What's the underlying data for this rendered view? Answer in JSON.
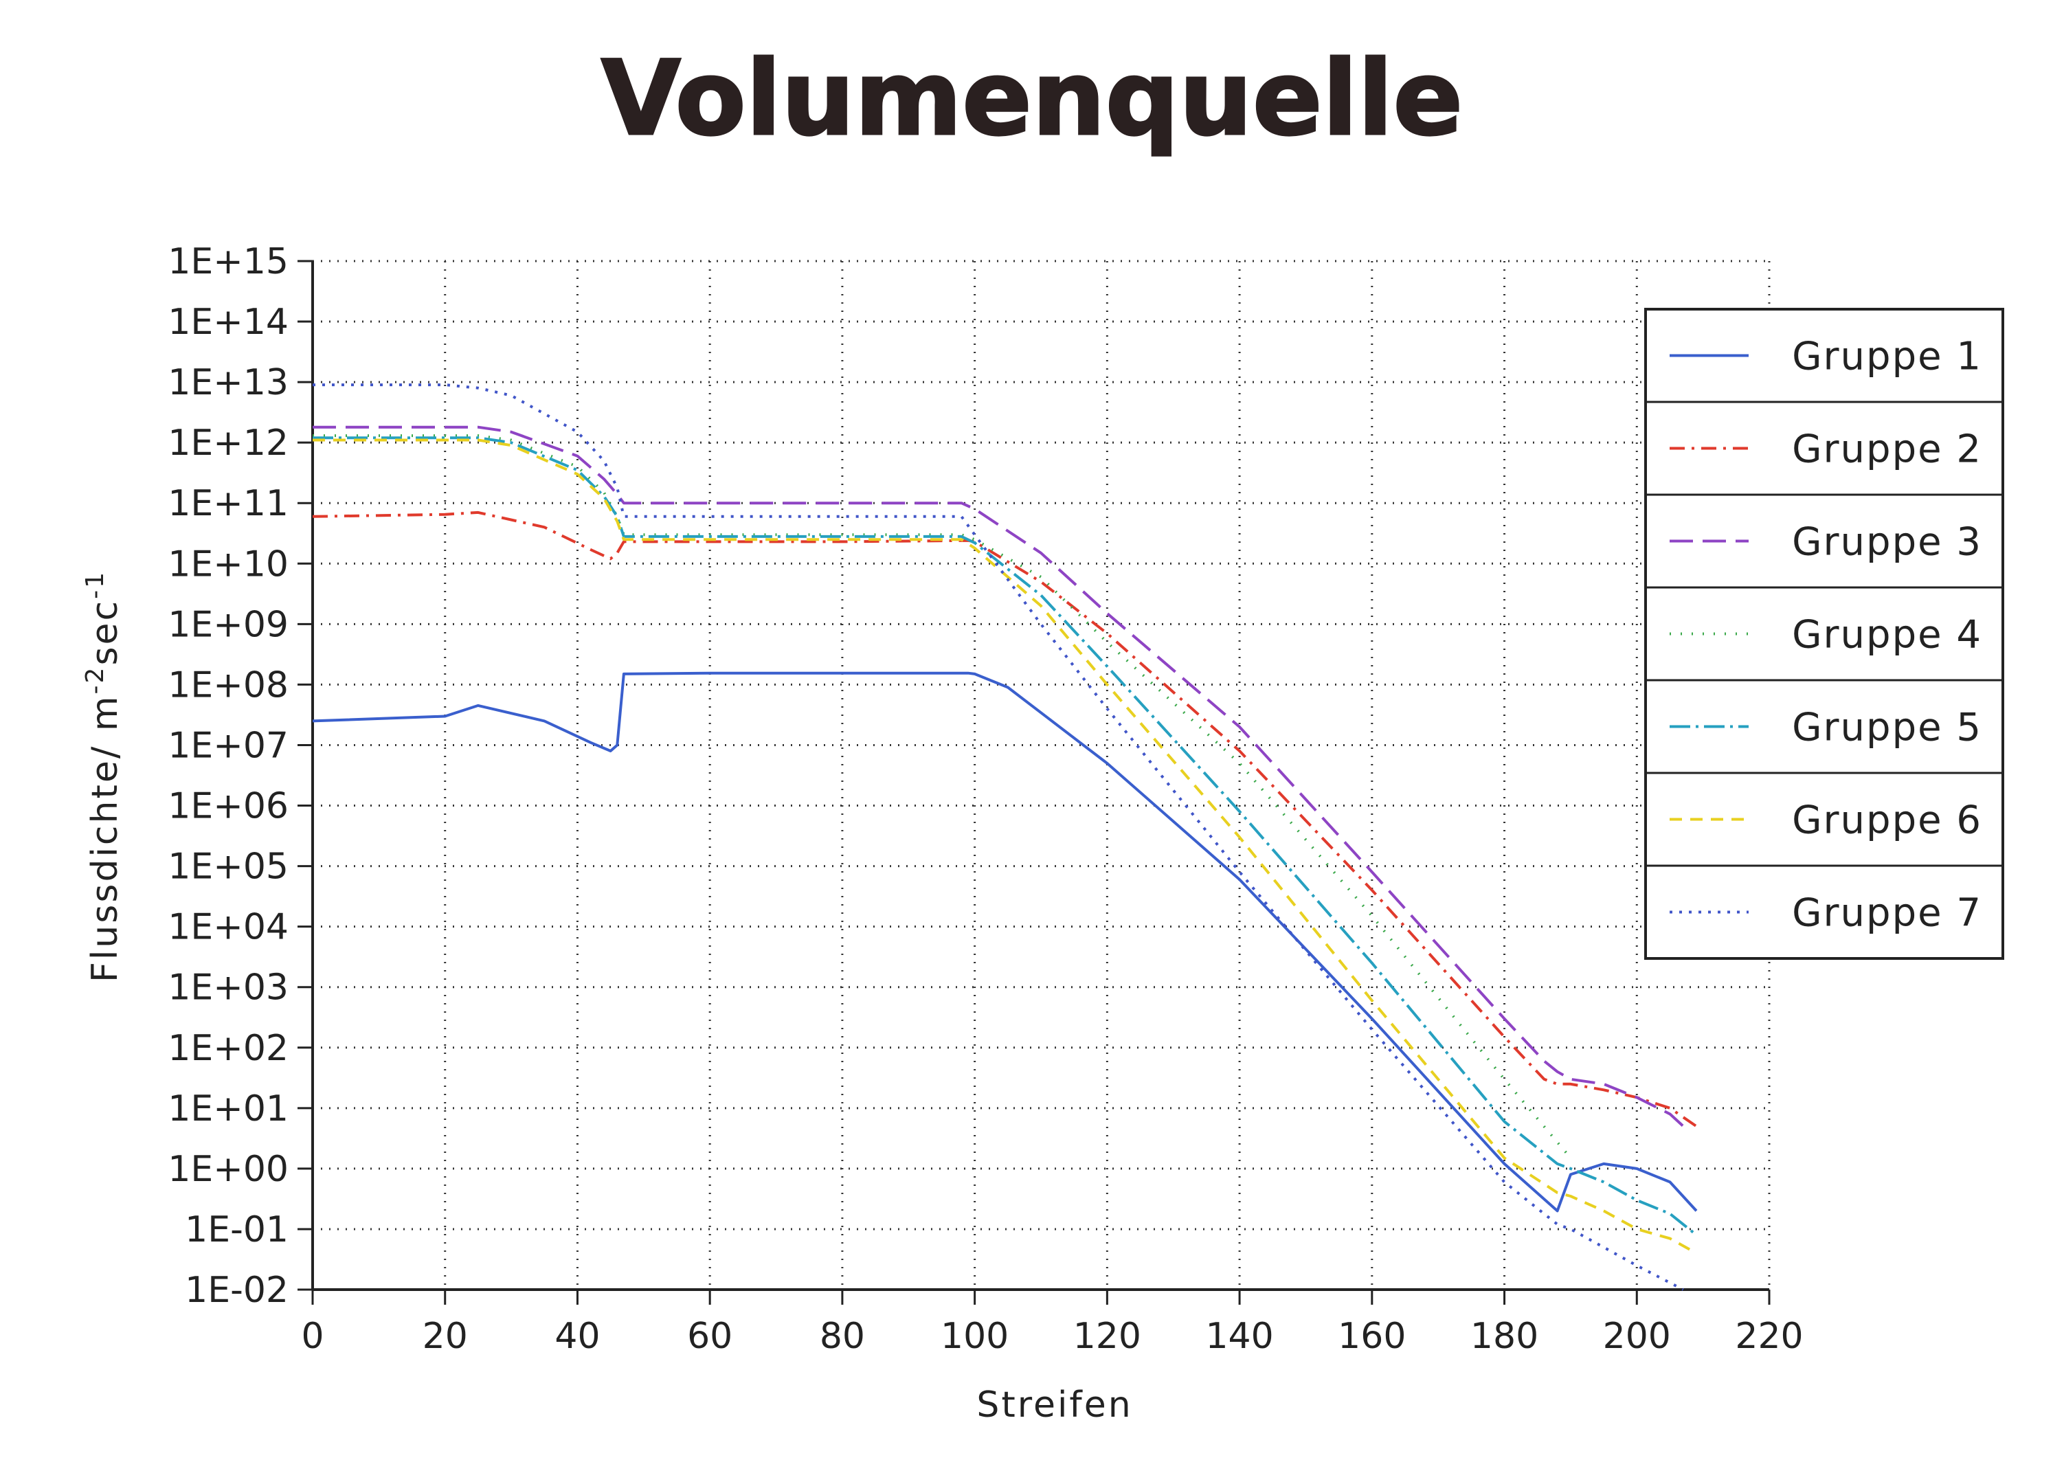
{
  "chart_data": {
    "type": "line",
    "title": "Volumenquelle",
    "xlabel": "Streifen",
    "ylabel_main": "Flussdichte/ m",
    "ylabel_sup1": "-2",
    "ylabel_mid": "sec",
    "ylabel_sup2": "-1",
    "xlim": [
      0,
      220
    ],
    "ylim_log10": [
      -2,
      15
    ],
    "y_scale": "log",
    "grid": true,
    "grid_style": "dotted",
    "legend_position": "right",
    "x_ticks": [
      "0",
      "20",
      "40",
      "60",
      "80",
      "100",
      "120",
      "140",
      "160",
      "180",
      "200",
      "220"
    ],
    "y_ticks": [
      "1E+15",
      "1E+14",
      "1E+13",
      "1E+12",
      "1E+11",
      "1E+10",
      "1E+09",
      "1E+08",
      "1E+07",
      "1E+06",
      "1E+05",
      "1E+04",
      "1E+03",
      "1E+02",
      "1E+01",
      "1E+00",
      "1E-01",
      "1E-02"
    ],
    "series": [
      {
        "name": "Gruppe 1",
        "color": "#3a5fcd",
        "dash": "solid",
        "x": [
          0,
          20,
          25,
          35,
          42,
          45,
          46,
          47,
          60,
          80,
          99,
          100,
          105,
          120,
          140,
          160,
          180,
          188,
          190,
          195,
          200,
          205,
          209
        ],
        "y": [
          25000000.0,
          30000000.0,
          45000000.0,
          25000000.0,
          11000000.0,
          8000000.0,
          10000000.0,
          150000000.0,
          155000000.0,
          155000000.0,
          155000000.0,
          150000000.0,
          90000000.0,
          5000000.0,
          60000.0,
          300.0,
          1.2,
          0.2,
          0.8,
          1.2,
          1.0,
          0.6,
          0.2
        ]
      },
      {
        "name": "Gruppe 2",
        "color": "#e03a2c",
        "dash": "22,10,4,10",
        "x": [
          0,
          20,
          25,
          35,
          42,
          45,
          46,
          47,
          60,
          80,
          99,
          100,
          110,
          120,
          140,
          160,
          180,
          186,
          188,
          190,
          195,
          200,
          205,
          209
        ],
        "y": [
          60000000000.0,
          65000000000.0,
          70000000000.0,
          40000000000.0,
          17000000000.0,
          12000000000.0,
          15000000000.0,
          23000000000.0,
          23000000000.0,
          23000000000.0,
          24000000000.0,
          23000000000.0,
          5000000000.0,
          700000000.0,
          8000000.0,
          40000.0,
          150.0,
          30.0,
          25.0,
          25.0,
          20.0,
          15.0,
          10.0,
          5
        ]
      },
      {
        "name": "Gruppe 3",
        "color": "#8e44c4",
        "dash": "34,14",
        "x": [
          0,
          25,
          30,
          40,
          44,
          46,
          47,
          60,
          80,
          98,
          100,
          110,
          120,
          140,
          160,
          180,
          186,
          188,
          190,
          195,
          200,
          205,
          208
        ],
        "y": [
          1800000000000.0,
          1800000000000.0,
          1500000000000.0,
          600000000000.0,
          250000000000.0,
          140000000000.0,
          100000000000.0,
          100000000000.0,
          100000000000.0,
          100000000000.0,
          80000000000.0,
          15000000000.0,
          1500000000.0,
          20000000.0,
          80000.0,
          300.0,
          60.0,
          40.0,
          30.0,
          25.0,
          15.0,
          8,
          4
        ]
      },
      {
        "name": "Gruppe 4",
        "color": "#3aa84a",
        "dash": "2,14",
        "x": [
          0,
          25,
          30,
          40,
          44,
          46,
          47,
          60,
          80,
          98,
          100,
          110,
          120,
          140,
          160,
          180,
          190
        ],
        "y": [
          1300000000000.0,
          1300000000000.0,
          1100000000000.0,
          400000000000.0,
          150000000000.0,
          60000000000.0,
          30000000000.0,
          30000000000.0,
          30000000000.0,
          30000000000.0,
          25000000000.0,
          6000000000.0,
          500000000.0,
          5000000.0,
          15000.0,
          30.0,
          1.5
        ]
      },
      {
        "name": "Gruppe 5",
        "color": "#26a0c0",
        "dash": "30,8,4,8",
        "x": [
          0,
          25,
          30,
          40,
          44,
          46,
          47,
          60,
          80,
          98,
          100,
          110,
          120,
          140,
          160,
          180,
          188,
          190,
          195,
          200,
          205,
          209
        ],
        "y": [
          1200000000000.0,
          1200000000000.0,
          1000000000000.0,
          350000000000.0,
          130000000000.0,
          60000000000.0,
          28000000000.0,
          28000000000.0,
          28000000000.0,
          28000000000.0,
          22000000000.0,
          3000000000.0,
          200000000.0,
          800000.0,
          2500.0,
          6,
          1.2,
          1,
          0.6,
          0.3,
          0.18,
          0.08
        ]
      },
      {
        "name": "Gruppe 6",
        "color": "#e8d020",
        "dash": "18,12",
        "x": [
          0,
          25,
          30,
          40,
          44,
          46,
          47,
          60,
          80,
          98,
          100,
          110,
          120,
          140,
          160,
          180,
          188,
          190,
          195,
          200,
          205,
          209
        ],
        "y": [
          1100000000000.0,
          1100000000000.0,
          900000000000.0,
          300000000000.0,
          120000000000.0,
          50000000000.0,
          25000000000.0,
          25000000000.0,
          25000000000.0,
          25000000000.0,
          18000000000.0,
          2000000000.0,
          100000000.0,
          300000.0,
          600.0,
          1.5,
          0.4,
          0.35,
          0.2,
          0.1,
          0.07,
          0.04
        ]
      },
      {
        "name": "Gruppe 7",
        "color": "#4055c8",
        "dash": "4,10",
        "x": [
          0,
          20,
          25,
          30,
          40,
          44,
          46,
          47,
          60,
          80,
          98,
          100,
          110,
          120,
          140,
          160,
          180,
          188,
          190,
          195,
          200,
          205,
          207
        ],
        "y": [
          9000000000000.0,
          9000000000000.0,
          8000000000000.0,
          6000000000000.0,
          1500000000000.0,
          500000000000.0,
          180000000000.0,
          60000000000.0,
          60000000000.0,
          60000000000.0,
          60000000000.0,
          30000000000.0,
          1000000000.0,
          40000000.0,
          80000.0,
          200.0,
          0.6,
          0.12,
          0.1,
          0.05,
          0.025,
          0.013,
          0.01
        ]
      }
    ]
  }
}
